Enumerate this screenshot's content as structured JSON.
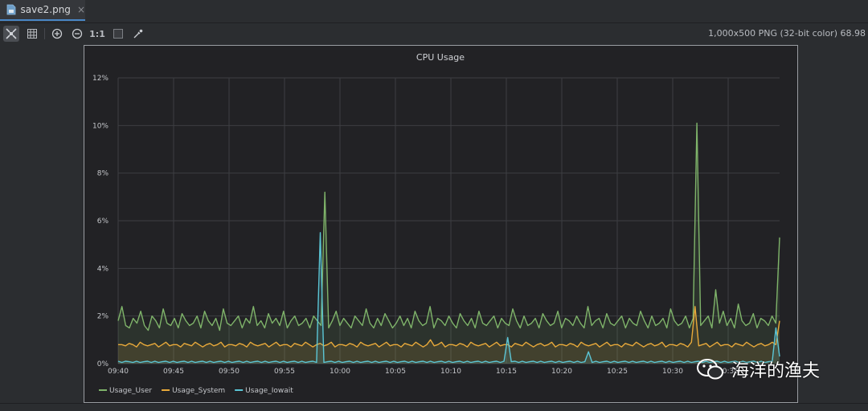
{
  "tab": {
    "label": "save2.png",
    "close_glyph": "×",
    "icon": "image-file-icon"
  },
  "toolbar": {
    "buttons": [
      {
        "name": "fit-to-window-button",
        "icon": "fit-window-icon"
      },
      {
        "name": "toggle-grid-button",
        "icon": "grid-icon"
      },
      {
        "name": "zoom-in-button",
        "icon": "zoom-in-icon"
      },
      {
        "name": "zoom-out-button",
        "icon": "zoom-out-icon"
      },
      {
        "name": "actual-size-button",
        "label": "1:1"
      },
      {
        "name": "background-toggle-button",
        "icon": "chessboard-icon"
      },
      {
        "name": "color-picker-button",
        "icon": "eyedropper-icon"
      }
    ]
  },
  "image_info": "1,000x500 PNG (32-bit color) 68.98",
  "watermark": {
    "text": "海洋的渔夫",
    "icon": "wechat-icon"
  },
  "colors": {
    "user": "#7fb46a",
    "system": "#e8a93a",
    "iowait": "#5bc6d6",
    "grid": "#3d3e42",
    "plot_bg": "#222225"
  },
  "chart_data": {
    "type": "line",
    "title": "CPU Usage",
    "xlabel": "",
    "ylabel": "",
    "ylim": [
      0,
      12
    ],
    "yticks": [
      "0%",
      "2%",
      "4%",
      "6%",
      "8%",
      "10%",
      "12%"
    ],
    "xticks": [
      "09:40",
      "09:45",
      "09:50",
      "09:55",
      "10:00",
      "10:05",
      "10:10",
      "10:15",
      "10:20",
      "10:25",
      "10:30",
      "10:35"
    ],
    "x_range_minutes": [
      0,
      60
    ],
    "legend_position": "bottom-left",
    "grid": true,
    "series": [
      {
        "name": "Usage_User",
        "color": "#7fb46a",
        "values": [
          1.8,
          2.4,
          1.6,
          1.5,
          1.9,
          1.7,
          2.2,
          1.6,
          1.4,
          2.0,
          1.8,
          1.5,
          2.3,
          1.7,
          1.6,
          1.9,
          1.5,
          2.1,
          1.8,
          1.6,
          1.7,
          2.0,
          1.5,
          2.2,
          1.8,
          1.6,
          1.9,
          1.4,
          2.3,
          1.7,
          1.6,
          1.8,
          2.0,
          1.5,
          1.9,
          1.7,
          2.4,
          1.6,
          1.8,
          1.5,
          2.1,
          1.7,
          1.9,
          1.6,
          2.2,
          1.5,
          1.8,
          2.0,
          1.6,
          1.7,
          1.9,
          1.5,
          2.0,
          1.8,
          1.6,
          7.2,
          1.5,
          1.8,
          2.2,
          1.6,
          1.9,
          1.7,
          1.5,
          2.0,
          1.8,
          1.6,
          2.3,
          1.7,
          1.5,
          1.9,
          1.6,
          2.1,
          1.8,
          1.5,
          1.7,
          2.0,
          1.6,
          1.9,
          1.5,
          2.2,
          1.8,
          1.6,
          1.7,
          2.4,
          1.5,
          1.9,
          1.8,
          1.6,
          2.0,
          1.7,
          1.5,
          2.1,
          1.8,
          1.6,
          1.9,
          1.5,
          2.2,
          1.7,
          1.6,
          1.8,
          2.0,
          1.5,
          1.9,
          1.7,
          1.6,
          2.3,
          1.8,
          1.5,
          2.0,
          1.6,
          1.7,
          1.9,
          1.5,
          2.1,
          1.8,
          1.6,
          1.7,
          2.2,
          1.5,
          1.9,
          1.8,
          1.6,
          2.0,
          1.7,
          1.5,
          2.4,
          1.6,
          1.8,
          1.9,
          1.5,
          2.1,
          1.7,
          1.6,
          1.8,
          2.0,
          1.5,
          1.9,
          1.7,
          1.6,
          2.2,
          1.8,
          1.5,
          2.0,
          1.6,
          1.7,
          1.9,
          1.5,
          2.3,
          1.8,
          1.6,
          1.7,
          2.0,
          1.5,
          1.9,
          10.1,
          1.6,
          1.8,
          2.0,
          1.5,
          3.1,
          1.7,
          2.2,
          1.6,
          1.9,
          1.5,
          2.5,
          1.8,
          1.6,
          1.7,
          2.1,
          1.5,
          1.9,
          1.8,
          1.6,
          2.0,
          1.7,
          5.3
        ]
      },
      {
        "name": "Usage_System",
        "color": "#e8a93a",
        "values": [
          0.8,
          0.8,
          0.75,
          0.85,
          0.8,
          0.7,
          0.9,
          0.8,
          0.75,
          0.8,
          0.85,
          0.7,
          0.8,
          0.9,
          0.75,
          0.8,
          0.8,
          0.7,
          0.85,
          0.8,
          0.75,
          0.9,
          0.8,
          0.7,
          0.8,
          0.85,
          0.75,
          0.8,
          0.9,
          0.7,
          0.8,
          0.8,
          0.75,
          0.85,
          0.8,
          0.7,
          0.9,
          0.8,
          0.75,
          0.8,
          0.85,
          0.7,
          0.8,
          0.9,
          0.75,
          0.8,
          0.8,
          0.7,
          0.85,
          0.8,
          0.75,
          0.9,
          0.8,
          0.7,
          0.8,
          0.85,
          0.75,
          0.8,
          0.9,
          0.7,
          0.8,
          0.8,
          0.75,
          0.85,
          0.8,
          0.7,
          0.9,
          0.8,
          0.75,
          0.8,
          0.85,
          0.7,
          0.8,
          0.9,
          0.75,
          0.8,
          0.8,
          0.7,
          0.85,
          0.8,
          0.75,
          0.9,
          0.8,
          0.7,
          0.8,
          1.0,
          0.75,
          0.8,
          0.9,
          0.7,
          0.8,
          0.8,
          0.75,
          0.85,
          0.8,
          0.7,
          0.9,
          0.8,
          0.75,
          0.8,
          0.85,
          0.7,
          0.8,
          0.9,
          0.75,
          0.8,
          0.8,
          0.7,
          0.85,
          0.8,
          0.75,
          0.9,
          0.8,
          0.7,
          0.8,
          0.85,
          0.75,
          0.8,
          0.9,
          0.7,
          0.8,
          0.8,
          0.75,
          0.85,
          0.8,
          0.7,
          0.9,
          0.8,
          0.75,
          0.8,
          0.85,
          0.7,
          0.8,
          0.9,
          0.75,
          0.8,
          0.8,
          0.7,
          0.85,
          0.8,
          0.75,
          0.9,
          0.8,
          0.7,
          0.8,
          0.85,
          0.75,
          0.8,
          0.9,
          0.7,
          0.8,
          0.8,
          0.75,
          0.85,
          0.8,
          0.7,
          0.9,
          2.4,
          0.75,
          0.8,
          0.85,
          0.7,
          0.8,
          0.9,
          0.75,
          0.8,
          0.8,
          0.7,
          0.85,
          0.8,
          0.75,
          0.9,
          0.8,
          0.7,
          0.8,
          0.85,
          0.75,
          0.8,
          0.9,
          0.8,
          1.8
        ]
      },
      {
        "name": "Usage_Iowait",
        "color": "#5bc6d6",
        "values": [
          0.1,
          0.05,
          0.1,
          0.08,
          0.05,
          0.1,
          0.05,
          0.08,
          0.1,
          0.05,
          0.1,
          0.05,
          0.08,
          0.1,
          0.05,
          0.1,
          0.05,
          0.08,
          0.1,
          0.05,
          0.1,
          0.05,
          0.08,
          0.1,
          0.05,
          0.1,
          0.05,
          0.08,
          0.1,
          0.05,
          0.1,
          0.05,
          0.08,
          0.1,
          0.05,
          0.1,
          0.05,
          0.08,
          0.1,
          0.05,
          0.1,
          0.05,
          0.08,
          0.1,
          0.05,
          0.1,
          0.05,
          0.08,
          0.1,
          0.05,
          0.1,
          0.05,
          0.08,
          0.1,
          0.05,
          5.5,
          0.05,
          0.08,
          0.1,
          0.05,
          0.1,
          0.05,
          0.08,
          0.1,
          0.05,
          0.1,
          0.05,
          0.08,
          0.1,
          0.05,
          0.1,
          0.05,
          0.08,
          0.1,
          0.05,
          0.1,
          0.05,
          0.08,
          0.1,
          0.05,
          0.1,
          0.05,
          0.08,
          0.1,
          0.05,
          0.1,
          0.05,
          0.08,
          0.1,
          0.05,
          0.1,
          0.05,
          0.08,
          0.1,
          0.05,
          0.1,
          0.05,
          0.08,
          0.1,
          0.05,
          0.1,
          0.05,
          0.08,
          0.1,
          0.05,
          0.1,
          1.1,
          0.08,
          0.1,
          0.05,
          0.1,
          0.05,
          0.08,
          0.1,
          0.05,
          0.1,
          0.05,
          0.08,
          0.1,
          0.05,
          0.1,
          0.05,
          0.08,
          0.1,
          0.05,
          0.1,
          0.05,
          0.08,
          0.5,
          0.05,
          0.1,
          0.05,
          0.08,
          0.1,
          0.05,
          0.1,
          0.05,
          0.08,
          0.1,
          0.05,
          0.1,
          0.05,
          0.08,
          0.1,
          0.05,
          0.1,
          0.05,
          0.08,
          0.1,
          0.05,
          0.1,
          0.05,
          0.08,
          0.1,
          0.05,
          0.1,
          0.05,
          0.08,
          0.1,
          0.05,
          0.1,
          0.05,
          0.08,
          0.1,
          0.05,
          0.1,
          0.05,
          0.08,
          0.1,
          0.05,
          0.1,
          0.05,
          0.08,
          0.1,
          0.05,
          0.1,
          0.05,
          0.08,
          0.1,
          1.5,
          0.3
        ]
      }
    ]
  }
}
